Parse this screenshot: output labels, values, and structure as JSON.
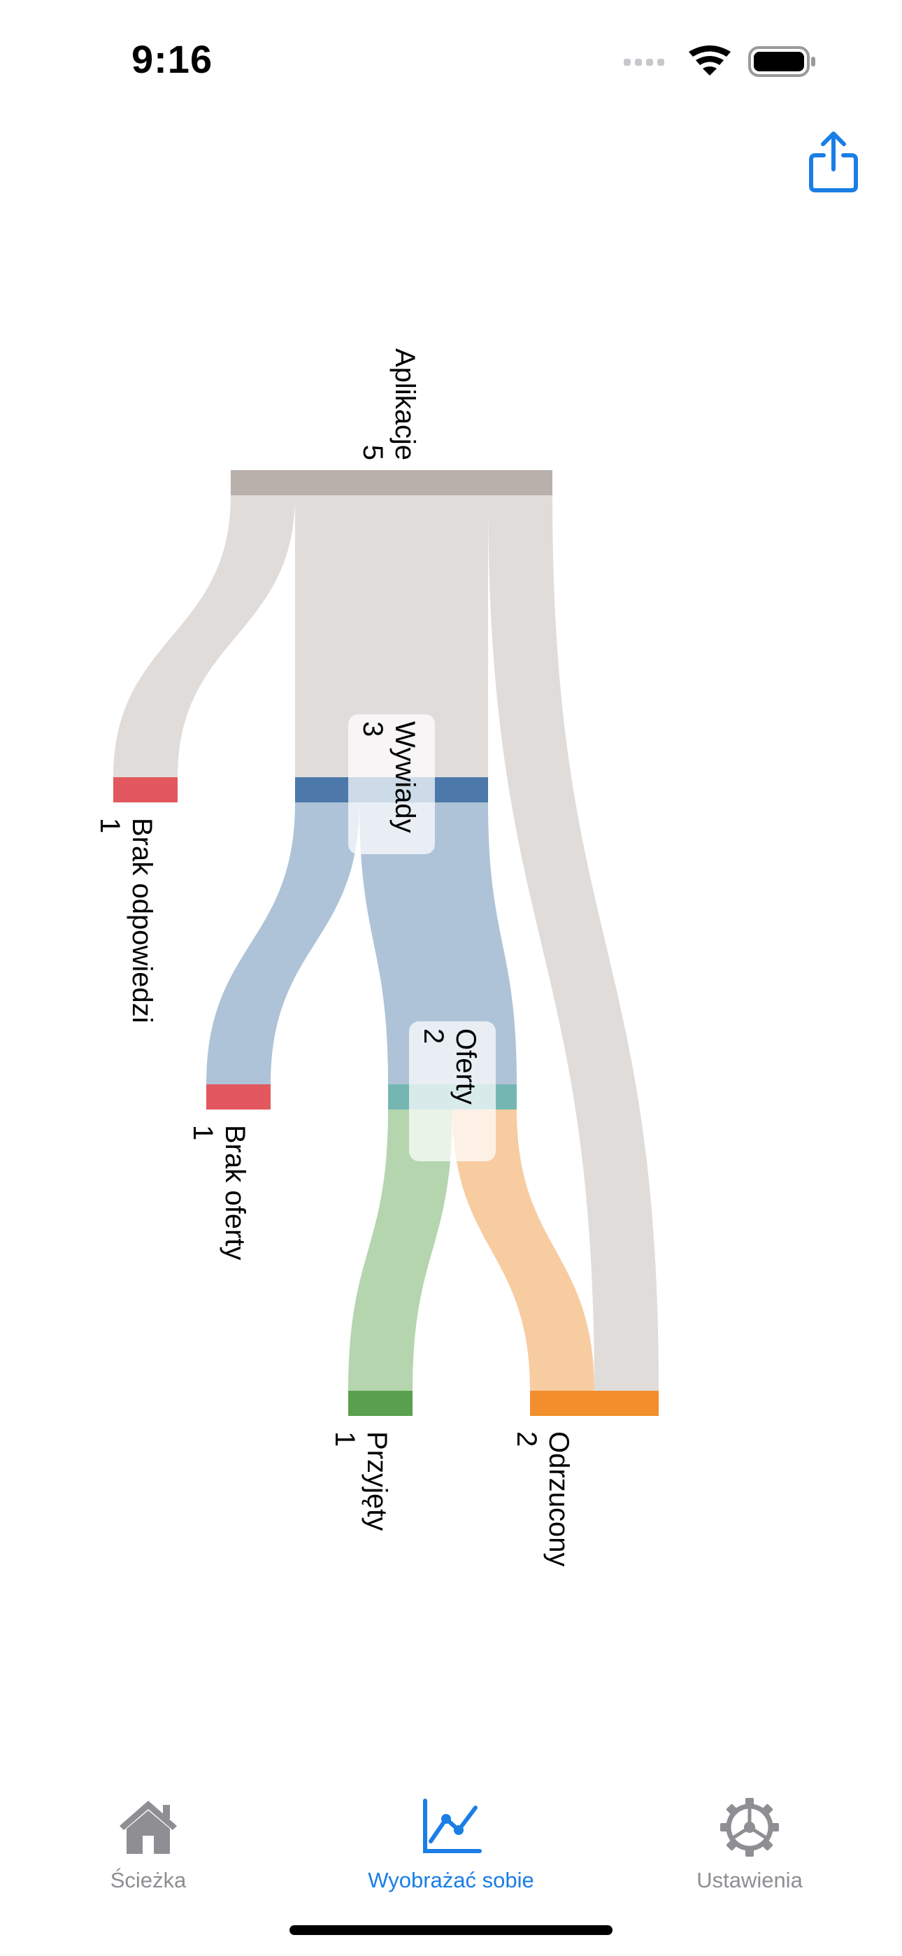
{
  "status_bar": {
    "time": "9:16"
  },
  "header": {
    "share_icon": "share-icon"
  },
  "colors": {
    "accent": "#1a7ee6",
    "inactive": "#8e8e93",
    "node_applications": "#b9b0ab",
    "node_interviews": "#4c79a9",
    "node_offers": "#74b7b2",
    "node_no_response": "#e2585e",
    "node_no_offer": "#e2585e",
    "node_accepted": "#5aa04e",
    "node_rejected": "#f28f2c",
    "flow_grey": "#e0dcd9",
    "flow_blue": "#aec3d7",
    "flow_green": "#b4d5ae",
    "flow_orange": "#f8cca1"
  },
  "chart_data": {
    "type": "sankey",
    "orientation": "top-to-bottom",
    "nodes": [
      {
        "id": "applications",
        "label": "Aplikacje",
        "value": 5
      },
      {
        "id": "interviews",
        "label": "Wywiady",
        "value": 3
      },
      {
        "id": "no_response",
        "label": "Brak odpowiedzi",
        "value": 1
      },
      {
        "id": "offers",
        "label": "Oferty",
        "value": 2
      },
      {
        "id": "no_offer",
        "label": "Brak oferty",
        "value": 1
      },
      {
        "id": "accepted",
        "label": "Przyjęty",
        "value": 1
      },
      {
        "id": "rejected",
        "label": "Odrzucony",
        "value": 2
      }
    ],
    "links": [
      {
        "source": "applications",
        "target": "no_response",
        "value": 1
      },
      {
        "source": "applications",
        "target": "interviews",
        "value": 3
      },
      {
        "source": "applications",
        "target": "rejected",
        "value": 1
      },
      {
        "source": "interviews",
        "target": "no_offer",
        "value": 1
      },
      {
        "source": "interviews",
        "target": "offers",
        "value": 2
      },
      {
        "source": "offers",
        "target": "accepted",
        "value": 1
      },
      {
        "source": "offers",
        "target": "rejected",
        "value": 1
      }
    ]
  },
  "tab_bar": {
    "tabs": [
      {
        "label": "Ścieżka",
        "icon": "house-icon",
        "active": false
      },
      {
        "label": "Wyobrażać sobie",
        "icon": "chart-line-icon",
        "active": true
      },
      {
        "label": "Ustawienia",
        "icon": "gear-icon",
        "active": false
      }
    ]
  }
}
